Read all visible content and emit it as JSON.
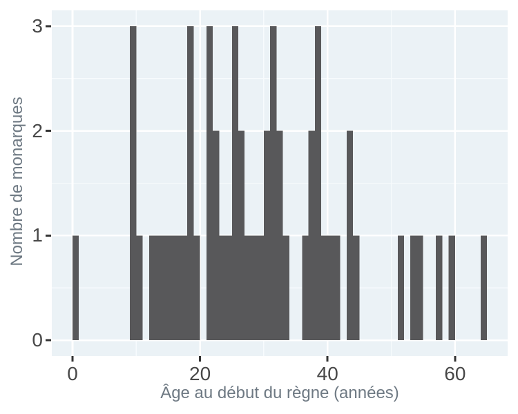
{
  "chart_data": {
    "type": "bar",
    "subtype": "histogram",
    "xlabel": "Âge au début du règne (années)",
    "ylabel": "Nombre de monarques",
    "binwidth": 1,
    "bins": [
      {
        "age": 0,
        "count": 1
      },
      {
        "age": 9,
        "count": 3
      },
      {
        "age": 10,
        "count": 1
      },
      {
        "age": 12,
        "count": 1
      },
      {
        "age": 13,
        "count": 1
      },
      {
        "age": 14,
        "count": 1
      },
      {
        "age": 15,
        "count": 1
      },
      {
        "age": 16,
        "count": 1
      },
      {
        "age": 17,
        "count": 1
      },
      {
        "age": 18,
        "count": 3
      },
      {
        "age": 19,
        "count": 1
      },
      {
        "age": 21,
        "count": 3
      },
      {
        "age": 22,
        "count": 2
      },
      {
        "age": 23,
        "count": 1
      },
      {
        "age": 24,
        "count": 1
      },
      {
        "age": 25,
        "count": 3
      },
      {
        "age": 26,
        "count": 2
      },
      {
        "age": 27,
        "count": 1
      },
      {
        "age": 28,
        "count": 1
      },
      {
        "age": 29,
        "count": 1
      },
      {
        "age": 30,
        "count": 2
      },
      {
        "age": 31,
        "count": 3
      },
      {
        "age": 32,
        "count": 2
      },
      {
        "age": 33,
        "count": 1
      },
      {
        "age": 36,
        "count": 1
      },
      {
        "age": 37,
        "count": 2
      },
      {
        "age": 38,
        "count": 3
      },
      {
        "age": 39,
        "count": 1
      },
      {
        "age": 40,
        "count": 1
      },
      {
        "age": 41,
        "count": 1
      },
      {
        "age": 43,
        "count": 2
      },
      {
        "age": 44,
        "count": 1
      },
      {
        "age": 51,
        "count": 1
      },
      {
        "age": 53,
        "count": 1
      },
      {
        "age": 54,
        "count": 1
      },
      {
        "age": 57,
        "count": 1
      },
      {
        "age": 59,
        "count": 1
      },
      {
        "age": 64,
        "count": 1
      }
    ],
    "x_ticks": [
      {
        "value": 0,
        "label": "0"
      },
      {
        "value": 20,
        "label": "20"
      },
      {
        "value": 40,
        "label": "40"
      },
      {
        "value": 60,
        "label": "60"
      }
    ],
    "y_ticks": [
      {
        "value": 0,
        "label": "0"
      },
      {
        "value": 1,
        "label": "1"
      },
      {
        "value": 2,
        "label": "2"
      },
      {
        "value": 3,
        "label": "3"
      }
    ],
    "x_minor_gridlines": [
      10,
      30,
      50
    ],
    "y_minor_gridlines": [
      0.5,
      1.5,
      2.5
    ],
    "xlim": [
      -3.25,
      68.25
    ],
    "ylim": [
      -0.15,
      3.15
    ],
    "grid": "major+minor",
    "legend": "none",
    "colors": {
      "bar_fill": "#58585a",
      "panel_background": "#ebf2f6",
      "gridline_major": "#ffffff",
      "gridline_minor": "#f7fbfd",
      "tick_mark": "#343434",
      "tick_label": "#484848",
      "axis_title": "#6e7983",
      "figure_background": "#ffffff"
    }
  }
}
